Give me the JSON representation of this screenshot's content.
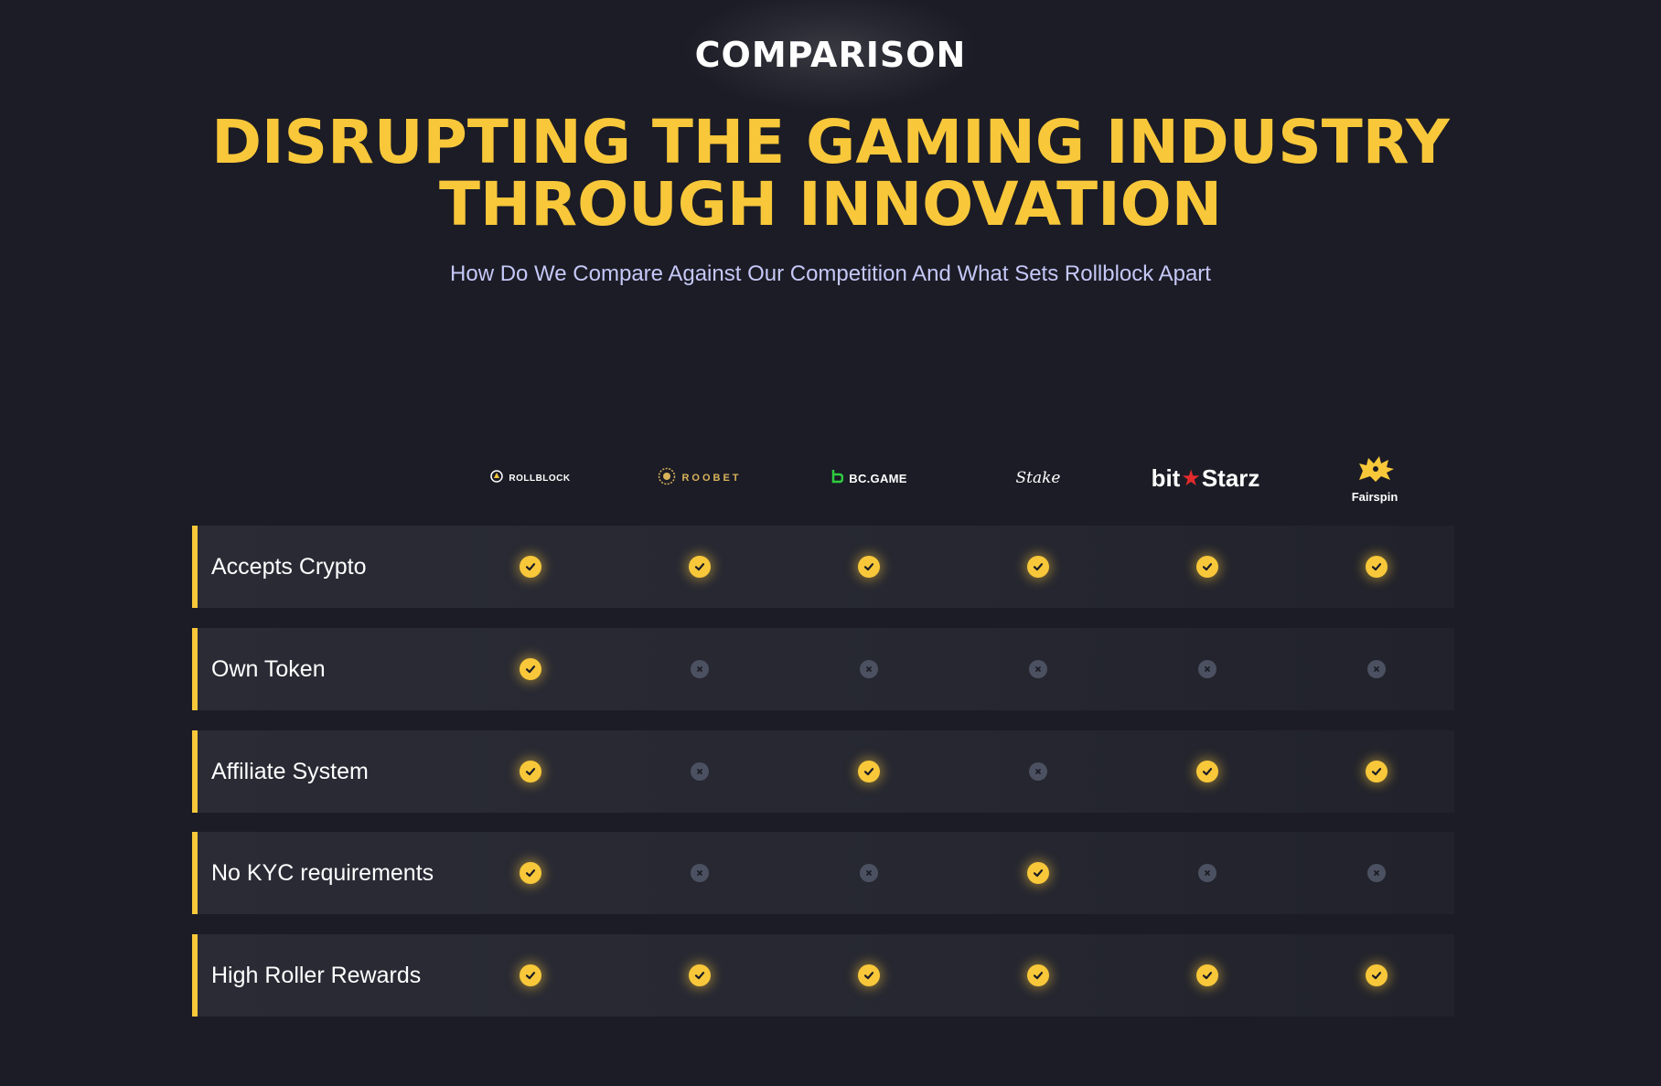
{
  "header": {
    "eyebrow": "COMPARISON",
    "headline_line1": "DISRUPTING THE GAMING INDUSTRY",
    "headline_line2": "THROUGH INNOVATION",
    "subhead": "How Do We Compare Against Our Competition And What Sets Rollblock Apart"
  },
  "brands": [
    {
      "name": "ROLLBLOCK",
      "icon": "rollblock-logo-icon"
    },
    {
      "name": "ROOBET",
      "icon": "roobet-logo-icon"
    },
    {
      "name": "BC.GAME",
      "icon": "bcgame-logo-icon"
    },
    {
      "name": "Stake",
      "icon": "stake-logo-icon"
    },
    {
      "name_part1": "bit",
      "name_part2": "Starz",
      "icon": "star-icon"
    },
    {
      "name": "Fairspin",
      "icon": "lion-logo-icon"
    }
  ],
  "rows": [
    {
      "label": "Accepts Crypto",
      "values": [
        true,
        true,
        true,
        true,
        true,
        true
      ]
    },
    {
      "label": "Own Token",
      "values": [
        true,
        false,
        false,
        false,
        false,
        false
      ]
    },
    {
      "label": "Affiliate System",
      "values": [
        true,
        false,
        true,
        false,
        true,
        true
      ]
    },
    {
      "label": "No KYC requirements",
      "values": [
        true,
        false,
        false,
        true,
        false,
        false
      ]
    },
    {
      "label": "High Roller Rewards",
      "values": [
        true,
        true,
        true,
        true,
        true,
        true
      ]
    }
  ],
  "colors": {
    "background": "#1c1c26",
    "accent": "#f8c83a",
    "subhead": "#c5c8f7",
    "no_mark": "#4c5161",
    "bitstarz_star": "#e32b2b"
  }
}
